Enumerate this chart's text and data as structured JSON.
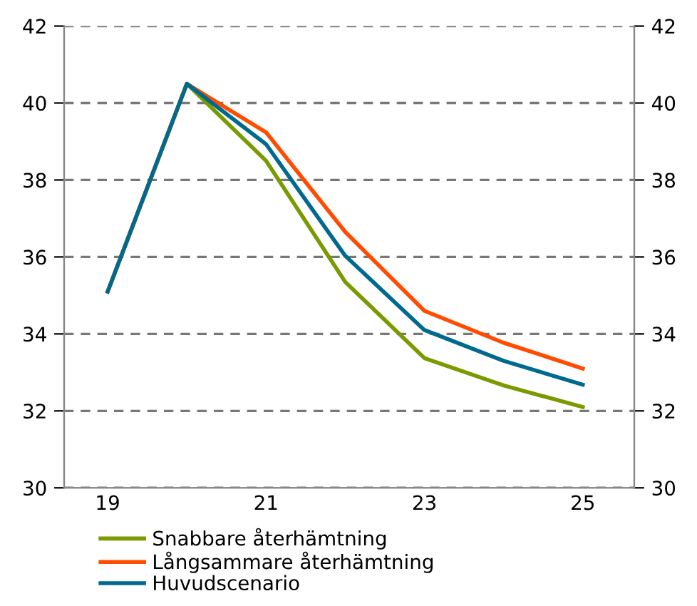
{
  "chart_data": {
    "type": "line",
    "categories": [
      "19",
      null,
      "21",
      null,
      "23",
      null,
      "25"
    ],
    "series": [
      {
        "name": "Snabbare återhämtning",
        "color": "#7a9a01",
        "values": [
          35.1,
          40.5,
          38.5,
          35.35,
          33.37,
          32.66,
          32.1
        ]
      },
      {
        "name": "Långsammare återhämtning",
        "color": "#ff4c00",
        "values": [
          35.1,
          40.5,
          39.24,
          36.65,
          34.6,
          33.77,
          33.1
        ]
      },
      {
        "name": "Huvudscenario",
        "color": "#006a8e",
        "values": [
          35.1,
          40.5,
          38.93,
          36.03,
          34.1,
          33.3,
          32.68
        ]
      }
    ],
    "ylim": [
      30,
      42
    ],
    "yticks": [
      30,
      32,
      34,
      36,
      38,
      40,
      42
    ],
    "y2lim": [
      30,
      42
    ],
    "y2ticks": [
      30,
      32,
      34,
      36,
      38,
      40,
      42
    ],
    "grid": "y",
    "legend": "bottom",
    "marker": "none",
    "line_style": "solid"
  }
}
